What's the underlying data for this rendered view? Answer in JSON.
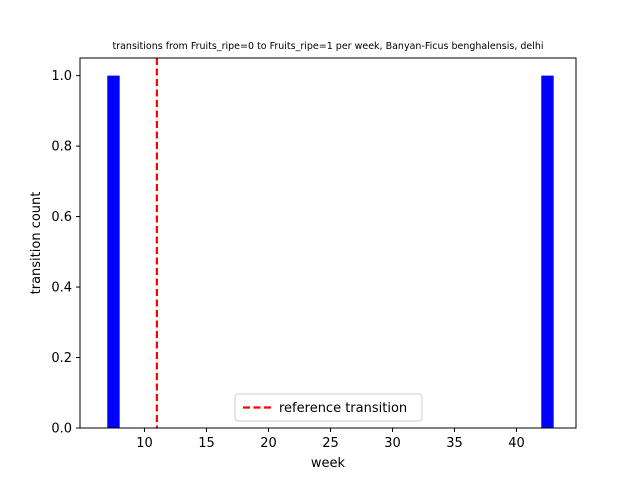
{
  "chart_data": {
    "type": "bar",
    "title": "transitions from Fruits_ripe=0 to Fruits_ripe=1 per week, Banyan-Ficus benghalensis, delhi",
    "xlabel": "week",
    "ylabel": "transition count",
    "xlim": [
      4.8,
      44.8
    ],
    "ylim": [
      0,
      1.05
    ],
    "x_ticks": [
      10,
      15,
      20,
      25,
      30,
      35,
      40
    ],
    "y_ticks": [
      0.0,
      0.2,
      0.4,
      0.6,
      0.8,
      1.0
    ],
    "y_tick_labels": [
      "0.0",
      "0.2",
      "0.4",
      "0.6",
      "0.8",
      "1.0"
    ],
    "bar_width": 1.0,
    "bar_color": "#0000ff",
    "bars": [
      {
        "x": 7.5,
        "value": 1
      },
      {
        "x": 42.5,
        "value": 1
      }
    ],
    "reference_line": {
      "x": 11,
      "label": "reference transition",
      "color": "#ff0000"
    },
    "legend_position": "lower center",
    "grid": false
  }
}
